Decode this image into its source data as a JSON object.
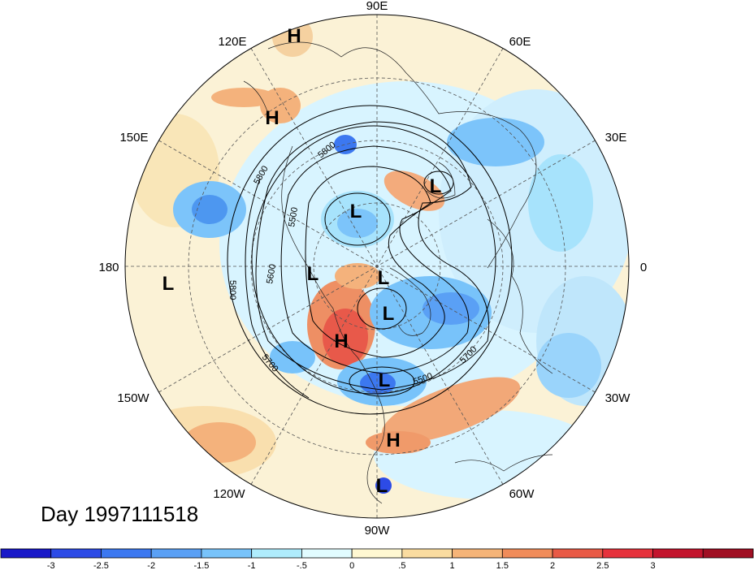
{
  "longitude_labels": [
    {
      "text": "90E",
      "angle": 90
    },
    {
      "text": "60E",
      "angle": 60
    },
    {
      "text": "30E",
      "angle": 30
    },
    {
      "text": "0",
      "angle": 0
    },
    {
      "text": "30W",
      "angle": -30
    },
    {
      "text": "60W",
      "angle": -60
    },
    {
      "text": "90W",
      "angle": -90
    },
    {
      "text": "120W",
      "angle": -120
    },
    {
      "text": "150W",
      "angle": -150
    },
    {
      "text": "180",
      "angle": 180
    },
    {
      "text": "150E",
      "angle": 150
    },
    {
      "text": "120E",
      "angle": 120
    }
  ],
  "pressure_centers": [
    "H",
    "H",
    "L",
    "L",
    "L",
    "L",
    "L",
    "H",
    "L",
    "L",
    "H",
    "L"
  ],
  "contour_labels": [
    "5800",
    "5800",
    "5500",
    "5600",
    "5800",
    "5700",
    "5500",
    "5700"
  ],
  "day_label": "Day 1997111518",
  "colorbar": {
    "colors": [
      "#1919c8",
      "#2d4be6",
      "#3c78f0",
      "#5aa0f5",
      "#78c3fa",
      "#afecfc",
      "#e1fcff",
      "#fff8d2",
      "#fadca0",
      "#f5b478",
      "#f08c5a",
      "#e85a46",
      "#e6323c",
      "#c3142d",
      "#a00f23"
    ],
    "tick_labels": [
      "-3",
      "-2.5",
      "-2",
      "-1.5",
      "-1",
      "-.5",
      "0",
      ".5",
      "1",
      "1.5",
      "2",
      "2.5",
      "3"
    ]
  }
}
